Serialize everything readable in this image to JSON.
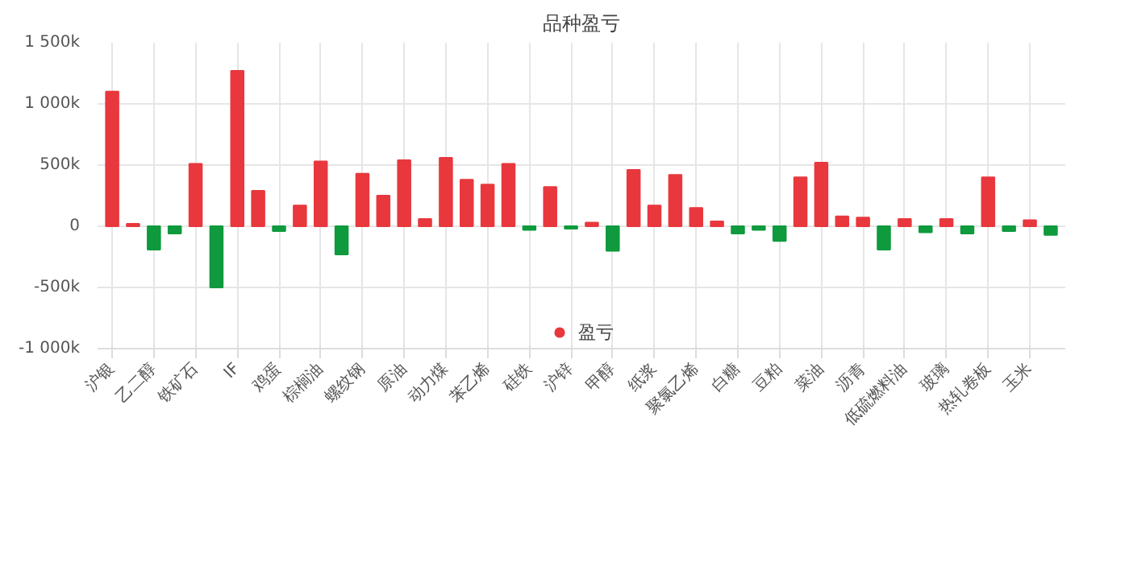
{
  "chart_data": {
    "type": "bar",
    "title": "品种盈亏",
    "categories": [
      "沪银",
      null,
      "乙二醇",
      null,
      "铁矿石",
      null,
      "IF",
      null,
      "鸡蛋",
      null,
      "棕榈油",
      null,
      "螺纹钢",
      null,
      "原油",
      null,
      "动力煤",
      null,
      "苯乙烯",
      null,
      "硅铁",
      null,
      "沪锌",
      null,
      "甲醇",
      null,
      "纸浆",
      null,
      "聚氯乙烯",
      null,
      "白糖",
      null,
      "豆粕",
      null,
      "菜油",
      null,
      "沥青",
      null,
      "低硫燃料油",
      null,
      "玻璃",
      null,
      "热轧卷板",
      null,
      "玉米",
      null
    ],
    "series": [
      {
        "name": "盈亏",
        "color": "#e8383d",
        "values": [
          1100000,
          20000,
          -190000,
          -60000,
          510000,
          -500000,
          1270000,
          290000,
          -40000,
          170000,
          530000,
          -230000,
          430000,
          250000,
          540000,
          60000,
          560000,
          380000,
          340000,
          510000,
          -30000,
          320000,
          -20000,
          30000,
          -200000,
          460000,
          170000,
          420000,
          150000,
          40000,
          -60000,
          -30000,
          -120000,
          400000,
          520000,
          80000,
          70000,
          -190000,
          60000,
          -50000,
          60000,
          -60000,
          400000,
          -40000,
          50000,
          -70000
        ],
        "colors": [
          "#e8383d",
          "#e8383d",
          "#0e9a3d",
          "#0e9a3d",
          "#e8383d",
          "#0e9a3d",
          "#e8383d",
          "#e8383d",
          "#0e9a3d",
          "#e8383d",
          "#e8383d",
          "#0e9a3d",
          "#e8383d",
          "#e8383d",
          "#e8383d",
          "#e8383d",
          "#e8383d",
          "#e8383d",
          "#e8383d",
          "#e8383d",
          "#0e9a3d",
          "#e8383d",
          "#0e9a3d",
          "#e8383d",
          "#0e9a3d",
          "#e8383d",
          "#e8383d",
          "#e8383d",
          "#e8383d",
          "#e8383d",
          "#0e9a3d",
          "#0e9a3d",
          "#0e9a3d",
          "#e8383d",
          "#e8383d",
          "#e8383d",
          "#e8383d",
          "#0e9a3d",
          "#e8383d",
          "#0e9a3d",
          "#e8383d",
          "#0e9a3d",
          "#e8383d",
          "#0e9a3d",
          "#e8383d",
          "#0e9a3d"
        ]
      }
    ],
    "ylim": [
      -1000000,
      1500000
    ],
    "yticks": [
      {
        "value": -1000000,
        "label": "-1 000k"
      },
      {
        "value": -500000,
        "label": "-500k"
      },
      0,
      {
        "value": 500000,
        "label": "500k"
      },
      {
        "value": 1000000,
        "label": "1 000k"
      },
      {
        "value": 1500000,
        "label": "1 500k"
      }
    ],
    "grid": true,
    "legend": "bottom"
  }
}
